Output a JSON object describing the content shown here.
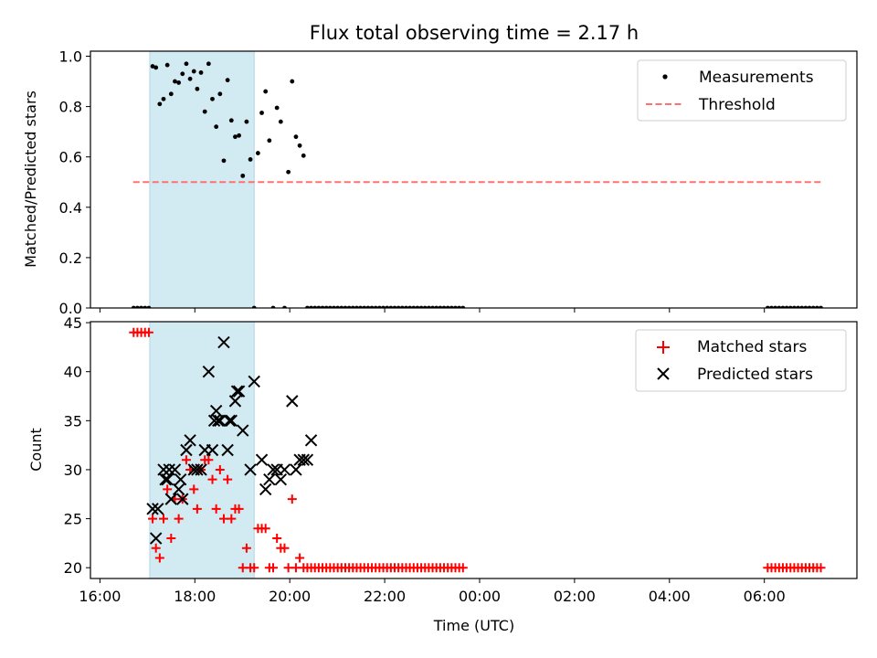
{
  "chart_data": {
    "title": "Flux total observing time = 2.17 h",
    "type": "scatter",
    "shaded_interval_hours": [
      17.05,
      19.25
    ],
    "shaded_color": "#add8e6",
    "xlabel": "Time (UTC)",
    "x_tick_hours": [
      16,
      18,
      20,
      22,
      24,
      26,
      28,
      30
    ],
    "x_tick_labels": [
      "16:00",
      "18:00",
      "20:00",
      "22:00",
      "00:00",
      "02:00",
      "04:00",
      "06:00"
    ],
    "xlim": [
      15.8,
      31.95
    ],
    "top": {
      "ylabel": "Matched/Predicted stars",
      "ylim": [
        0,
        1.02
      ],
      "y_ticks": [
        0.0,
        0.2,
        0.4,
        0.6,
        0.8,
        1.0
      ],
      "y_tick_labels": [
        "0.0",
        "0.2",
        "0.4",
        "0.6",
        "0.8",
        "1.0"
      ],
      "legend": {
        "position": "upper right",
        "entries": [
          "Measurements",
          "Threshold"
        ]
      },
      "threshold": {
        "label": "Threshold",
        "value": 0.5,
        "x_range": [
          16.7,
          31.2
        ],
        "color": "#ff7070"
      },
      "measurements": {
        "label": "Measurements",
        "color": "#000000",
        "x": [
          16.71,
          16.79,
          16.87,
          16.95,
          17.03,
          17.11,
          17.18,
          17.26,
          17.34,
          17.42,
          17.5,
          17.58,
          17.66,
          17.74,
          17.82,
          17.9,
          17.98,
          18.05,
          18.13,
          18.21,
          18.29,
          18.37,
          18.45,
          18.53,
          18.61,
          18.69,
          18.77,
          18.85,
          18.93,
          19.01,
          19.09,
          19.17,
          19.25,
          19.33,
          19.41,
          19.49,
          19.57,
          19.65,
          19.73,
          19.81,
          19.89,
          19.97,
          20.05,
          20.13,
          20.21,
          20.29,
          20.37,
          20.45,
          20.53,
          20.61,
          20.69,
          20.77,
          20.85,
          20.93,
          21.01,
          21.09,
          21.17,
          21.25,
          21.33,
          21.41,
          21.49,
          21.57,
          21.65,
          21.73,
          21.81,
          21.89,
          21.97,
          22.05,
          22.13,
          22.21,
          22.29,
          22.37,
          22.45,
          22.53,
          22.61,
          22.69,
          22.77,
          22.85,
          22.93,
          23.01,
          23.09,
          23.17,
          23.25,
          23.33,
          23.41,
          23.49,
          23.57,
          23.65,
          30.07,
          30.15,
          30.23,
          30.31,
          30.39,
          30.47,
          30.55,
          30.63,
          30.71,
          30.79,
          30.87,
          30.95,
          31.03,
          31.11,
          31.19
        ],
        "y": [
          0,
          0,
          0,
          0,
          0,
          0.96,
          0.955,
          0.81,
          0.83,
          0.965,
          0.85,
          0.9,
          0.895,
          0.93,
          0.97,
          0.91,
          0.94,
          0.87,
          0.935,
          0.78,
          0.97,
          0.83,
          0.72,
          0.85,
          0.585,
          0.905,
          0.745,
          0.68,
          0.685,
          0.525,
          0.74,
          0.59,
          0,
          0.615,
          0.775,
          0.86,
          0.665,
          0,
          0.795,
          0.74,
          0,
          0.54,
          0.9,
          0.68,
          0.645,
          0.605,
          0,
          0,
          0,
          0,
          0,
          0,
          0,
          0,
          0,
          0,
          0,
          0,
          0,
          0,
          0,
          0,
          0,
          0,
          0,
          0,
          0,
          0,
          0,
          0,
          0,
          0,
          0,
          0,
          0,
          0,
          0,
          0,
          0,
          0,
          0,
          0,
          0,
          0,
          0,
          0,
          0,
          0,
          0,
          0,
          0,
          0,
          0,
          0,
          0,
          0,
          0,
          0,
          0,
          0,
          0,
          0,
          0
        ]
      }
    },
    "bottom": {
      "ylabel": "Count",
      "ylim": [
        18.9,
        45.1
      ],
      "y_ticks": [
        20,
        25,
        30,
        35,
        40,
        45
      ],
      "y_tick_labels": [
        "20",
        "25",
        "30",
        "35",
        "40",
        "45"
      ],
      "legend": {
        "position": "upper right",
        "entries": [
          "Matched stars",
          "Predicted stars"
        ]
      },
      "matched": {
        "label": "Matched stars",
        "color": "#ff0000",
        "x": [
          16.71,
          16.79,
          16.87,
          16.95,
          17.03,
          17.11,
          17.18,
          17.26,
          17.34,
          17.42,
          17.5,
          17.58,
          17.66,
          17.74,
          17.82,
          17.9,
          17.98,
          18.05,
          18.13,
          18.21,
          18.29,
          18.37,
          18.45,
          18.53,
          18.61,
          18.69,
          18.77,
          18.85,
          18.93,
          19.01,
          19.09,
          19.17,
          19.25,
          19.33,
          19.41,
          19.49,
          19.57,
          19.65,
          19.73,
          19.81,
          19.89,
          19.97,
          20.05,
          20.13,
          20.21,
          20.29,
          20.37,
          20.45,
          20.53,
          20.61,
          20.69,
          20.77,
          20.85,
          20.93,
          21.01,
          21.09,
          21.17,
          21.25,
          21.33,
          21.41,
          21.49,
          21.57,
          21.65,
          21.73,
          21.81,
          21.89,
          21.97,
          22.05,
          22.13,
          22.21,
          22.29,
          22.37,
          22.45,
          22.53,
          22.61,
          22.69,
          22.77,
          22.85,
          22.93,
          23.01,
          23.09,
          23.17,
          23.25,
          23.33,
          23.41,
          23.49,
          23.57,
          23.65,
          30.07,
          30.15,
          30.23,
          30.31,
          30.39,
          30.47,
          30.55,
          30.63,
          30.71,
          30.79,
          30.87,
          30.95,
          31.03,
          31.11,
          31.19
        ],
        "y": [
          44,
          44,
          44,
          44,
          44,
          25,
          22,
          21,
          25,
          28,
          23,
          27,
          25,
          27,
          31,
          30,
          28,
          26,
          30,
          31,
          31,
          29,
          26,
          30,
          25,
          29,
          25,
          26,
          26,
          20,
          22,
          20,
          20,
          24,
          24,
          24,
          20,
          20,
          23,
          22,
          22,
          20,
          27,
          20,
          21,
          20,
          20,
          20,
          20,
          20,
          20,
          20,
          20,
          20,
          20,
          20,
          20,
          20,
          20,
          20,
          20,
          20,
          20,
          20,
          20,
          20,
          20,
          20,
          20,
          20,
          20,
          20,
          20,
          20,
          20,
          20,
          20,
          20,
          20,
          20,
          20,
          20,
          20,
          20,
          20,
          20,
          20,
          20,
          20,
          20,
          20,
          20,
          20,
          20,
          20,
          20,
          20,
          20,
          20,
          20,
          20,
          20,
          20
        ]
      },
      "predicted": {
        "label": "Predicted stars",
        "color": "#000000",
        "x": [
          17.11,
          17.18,
          17.22,
          17.34,
          17.38,
          17.42,
          17.46,
          17.5,
          17.58,
          17.66,
          17.7,
          17.74,
          17.82,
          17.9,
          17.98,
          18.05,
          18.13,
          18.21,
          18.29,
          18.37,
          18.41,
          18.45,
          18.49,
          18.53,
          18.61,
          18.69,
          18.73,
          18.77,
          18.85,
          18.89,
          18.93,
          19.01,
          19.17,
          19.25,
          19.41,
          19.49,
          19.57,
          19.65,
          19.73,
          19.81,
          19.89,
          20.05,
          20.13,
          20.21,
          20.29,
          20.37,
          20.45
        ],
        "y": [
          26,
          23,
          26,
          30,
          29,
          29,
          30,
          27,
          30,
          28,
          29,
          27,
          32,
          33,
          30,
          30,
          30,
          32,
          40,
          32,
          35,
          36,
          35,
          35,
          43,
          32,
          35,
          35,
          37,
          38,
          38,
          34,
          30,
          39,
          31,
          28,
          29,
          30,
          30,
          29,
          30,
          37,
          30,
          31,
          31,
          31,
          33
        ]
      }
    }
  }
}
